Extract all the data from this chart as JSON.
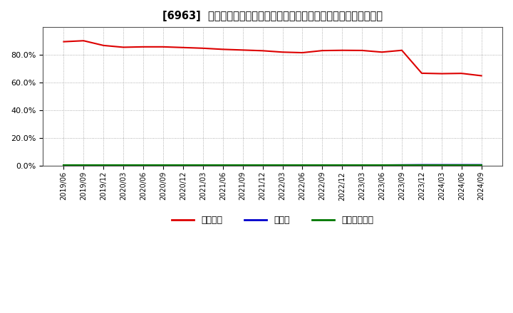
{
  "title": "[6963]  自己資本、のれん、繰延税金資産の総資産に対する比率の推移",
  "series": {
    "自己資本": {
      "color": "#dd0000",
      "values": [
        [
          "2019/06",
          0.895
        ],
        [
          "2019/09",
          0.902
        ],
        [
          "2019/12",
          0.868
        ],
        [
          "2020/03",
          0.855
        ],
        [
          "2020/06",
          0.858
        ],
        [
          "2020/09",
          0.858
        ],
        [
          "2020/12",
          0.853
        ],
        [
          "2021/03",
          0.848
        ],
        [
          "2021/06",
          0.84
        ],
        [
          "2021/09",
          0.835
        ],
        [
          "2021/12",
          0.83
        ],
        [
          "2022/03",
          0.82
        ],
        [
          "2022/06",
          0.816
        ],
        [
          "2022/09",
          0.831
        ],
        [
          "2022/12",
          0.833
        ],
        [
          "2023/03",
          0.832
        ],
        [
          "2023/06",
          0.82
        ],
        [
          "2023/09",
          0.833
        ],
        [
          "2023/12",
          0.668
        ],
        [
          "2024/03",
          0.665
        ],
        [
          "2024/06",
          0.667
        ],
        [
          "2024/09",
          0.65
        ]
      ]
    },
    "のれん": {
      "color": "#0000cc",
      "values": [
        [
          "2019/06",
          0.003
        ],
        [
          "2019/09",
          0.003
        ],
        [
          "2019/12",
          0.003
        ],
        [
          "2020/03",
          0.003
        ],
        [
          "2020/06",
          0.003
        ],
        [
          "2020/09",
          0.003
        ],
        [
          "2020/12",
          0.003
        ],
        [
          "2021/03",
          0.003
        ],
        [
          "2021/06",
          0.003
        ],
        [
          "2021/09",
          0.004
        ],
        [
          "2021/12",
          0.004
        ],
        [
          "2022/03",
          0.005
        ],
        [
          "2022/06",
          0.006
        ],
        [
          "2022/09",
          0.007
        ],
        [
          "2022/12",
          0.007
        ],
        [
          "2023/03",
          0.007
        ],
        [
          "2023/06",
          0.007
        ],
        [
          "2023/09",
          0.008
        ],
        [
          "2023/12",
          0.009
        ],
        [
          "2024/03",
          0.009
        ],
        [
          "2024/06",
          0.009
        ],
        [
          "2024/09",
          0.009
        ]
      ]
    },
    "繰延税金資産": {
      "color": "#007700",
      "values": [
        [
          "2019/06",
          0.007
        ],
        [
          "2019/09",
          0.007
        ],
        [
          "2019/12",
          0.007
        ],
        [
          "2020/03",
          0.007
        ],
        [
          "2020/06",
          0.007
        ],
        [
          "2020/09",
          0.007
        ],
        [
          "2020/12",
          0.007
        ],
        [
          "2021/03",
          0.007
        ],
        [
          "2021/06",
          0.007
        ],
        [
          "2021/09",
          0.007
        ],
        [
          "2021/12",
          0.007
        ],
        [
          "2022/03",
          0.007
        ],
        [
          "2022/06",
          0.007
        ],
        [
          "2022/09",
          0.007
        ],
        [
          "2022/12",
          0.007
        ],
        [
          "2023/03",
          0.007
        ],
        [
          "2023/06",
          0.007
        ],
        [
          "2023/09",
          0.007
        ],
        [
          "2023/12",
          0.007
        ],
        [
          "2024/03",
          0.007
        ],
        [
          "2024/06",
          0.007
        ],
        [
          "2024/09",
          0.007
        ]
      ]
    }
  },
  "ylim": [
    0.0,
    1.0
  ],
  "yticks": [
    0.0,
    0.2,
    0.4,
    0.6,
    0.8
  ],
  "background_color": "#ffffff",
  "plot_bg_color": "#ffffff",
  "grid_color": "#999999",
  "title_fontsize": 10.5,
  "legend_labels": [
    "自己資本",
    "のれん",
    "繰延税金資産"
  ],
  "legend_colors": [
    "#dd0000",
    "#0000cc",
    "#007700"
  ]
}
